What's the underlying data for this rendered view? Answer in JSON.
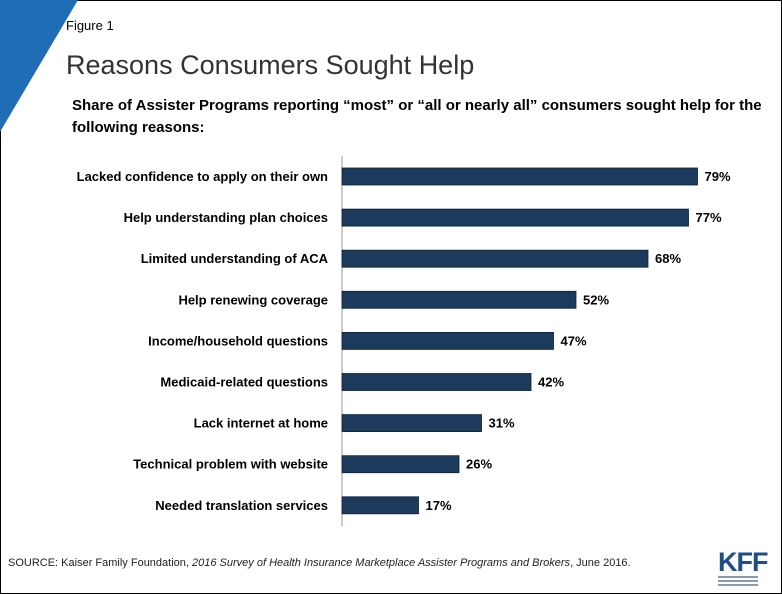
{
  "figure_label": "Figure 1",
  "title": "Reasons Consumers Sought Help",
  "subtitle": "Share of Assister Programs reporting “most” or “all or nearly all” consumers sought help for the following reasons:",
  "source": {
    "prefix": "SOURCE: Kaiser Family Foundation, ",
    "italic": "2016 Survey of Health Insurance Marketplace Assister Programs and Brokers",
    "suffix": ", June 2016."
  },
  "logo": {
    "text": "KFF"
  },
  "colors": {
    "bar": "#1b3a5c",
    "corner": "#1f6eb5",
    "logo": "#1f4e86"
  },
  "chart_data": {
    "type": "bar",
    "orientation": "horizontal",
    "categories": [
      "Lacked confidence to apply on their own",
      "Help understanding plan choices",
      "Limited understanding of ACA",
      "Help renewing coverage",
      "Income/household questions",
      "Medicaid-related questions",
      "Lack internet at home",
      "Technical problem with website",
      "Needed translation services"
    ],
    "values": [
      79,
      77,
      68,
      52,
      47,
      42,
      31,
      26,
      17
    ],
    "value_labels": [
      "79%",
      "77%",
      "68%",
      "52%",
      "47%",
      "42%",
      "31%",
      "26%",
      "17%"
    ],
    "xlim": [
      0,
      100
    ],
    "grid": false,
    "legend": "none"
  }
}
